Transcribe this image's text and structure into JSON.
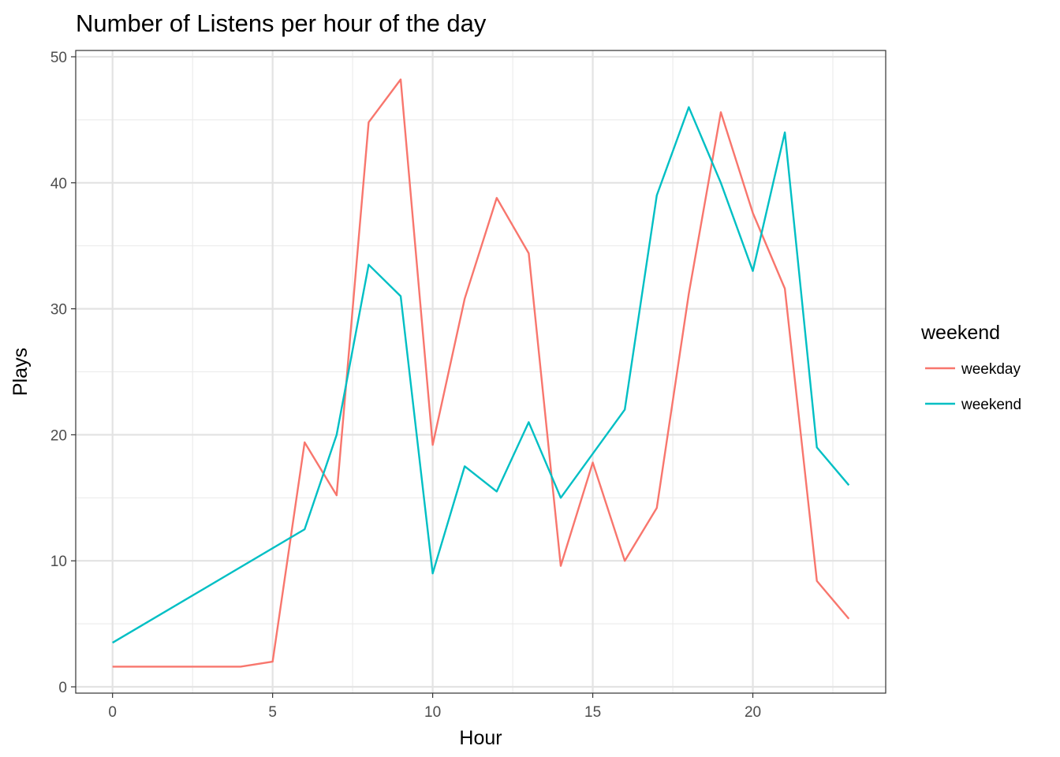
{
  "chart_data": {
    "type": "line",
    "title": "Number of Listens per hour of the day",
    "xlabel": "Hour",
    "ylabel": "Plays",
    "xlim": [
      -1.15,
      24.15
    ],
    "ylim": [
      -0.5,
      50.5
    ],
    "x_ticks": [
      0,
      5,
      10,
      15,
      20
    ],
    "y_ticks": [
      0,
      10,
      20,
      30,
      40,
      50
    ],
    "x_ticks_labels": [
      "0",
      "5",
      "10",
      "15",
      "20"
    ],
    "y_ticks_labels": [
      "0",
      "10",
      "20",
      "30",
      "40",
      "50"
    ],
    "grid": true,
    "legend": {
      "title": "weekend",
      "position": "right"
    },
    "series": [
      {
        "name": "weekday",
        "color": "#F8766D",
        "x": [
          0,
          1,
          2,
          3,
          4,
          5,
          6,
          7,
          8,
          9,
          10,
          11,
          12,
          13,
          14,
          15,
          16,
          17,
          18,
          19,
          20,
          21,
          22,
          23
        ],
        "values": [
          1.6,
          1.6,
          1.6,
          1.6,
          1.6,
          2.0,
          19.4,
          15.2,
          44.8,
          48.2,
          19.2,
          30.8,
          38.8,
          34.4,
          9.6,
          17.8,
          10.0,
          14.2,
          31.2,
          45.6,
          37.6,
          31.6,
          8.4,
          5.4
        ]
      },
      {
        "name": "weekend",
        "color": "#00BFC4",
        "x": [
          0,
          6,
          7,
          8,
          9,
          10,
          11,
          12,
          13,
          14,
          16,
          17,
          18,
          19,
          20,
          21,
          22,
          23
        ],
        "values": [
          3.5,
          12.5,
          20.0,
          33.5,
          31.0,
          9.0,
          17.5,
          15.5,
          21.0,
          15.0,
          22.0,
          39.0,
          46.0,
          40.0,
          33.0,
          44.0,
          19.0,
          16.0
        ]
      }
    ]
  }
}
